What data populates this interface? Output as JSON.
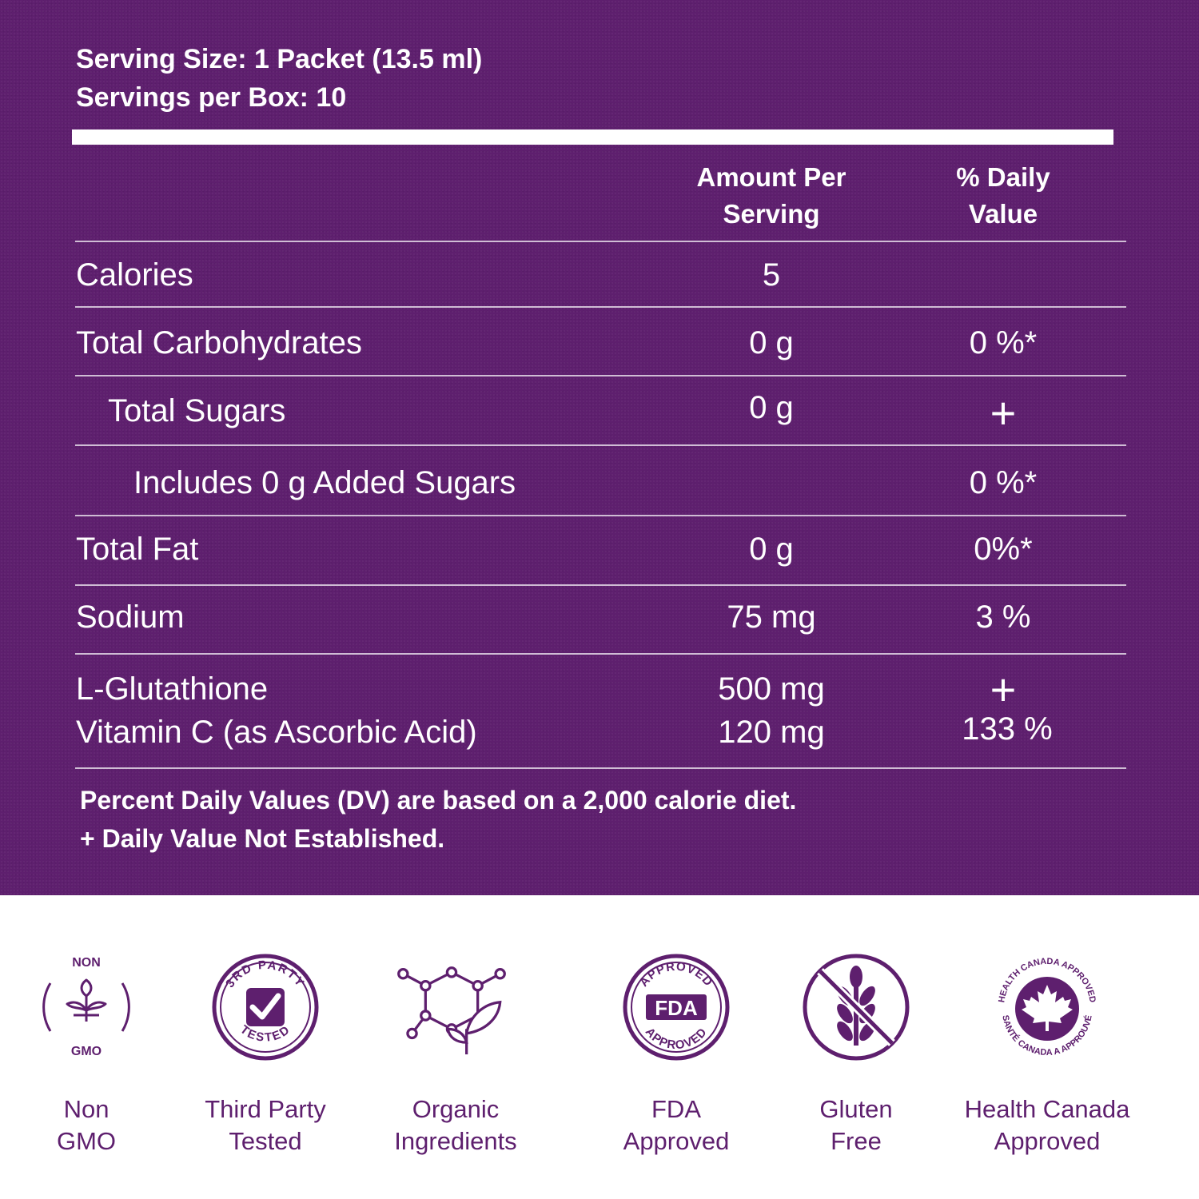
{
  "header": {
    "serving_size": "Serving Size: 1 Packet (13.5 ml)",
    "servings_per_box": "Servings per Box: 10"
  },
  "columns": {
    "amount_line1": "Amount Per",
    "amount_line2": "Serving",
    "dv_line1": "% Daily",
    "dv_line2": "Value"
  },
  "rows": [
    {
      "label": "Calories",
      "amount": "5",
      "dv": ""
    },
    {
      "label": "Total Carbohydrates",
      "amount": "0 g",
      "dv": "0 %*"
    },
    {
      "label": "Total Sugars",
      "amount": "0 g",
      "dv": "+"
    },
    {
      "label": "Includes 0 g Added Sugars",
      "amount": "",
      "dv": "0 %*"
    },
    {
      "label": "Total Fat",
      "amount": "0 g",
      "dv": "0%*"
    },
    {
      "label": "Sodium",
      "amount": "75 mg",
      "dv": "3 %"
    },
    {
      "label": "L-Glutathione",
      "amount": "500 mg",
      "dv": "+"
    },
    {
      "label": "Vitamin C (as Ascorbic Acid)",
      "amount": "120 mg",
      "dv": "133 %"
    }
  ],
  "footnotes": {
    "line1": "Percent Daily Values (DV) are based on a 2,000 calorie diet.",
    "line2": "+ Daily Value Not Established."
  },
  "badges": [
    {
      "icon": "non-gmo-icon",
      "line1": "Non",
      "line2": "GMO",
      "seal_top": "NON",
      "seal_bottom": "GMO"
    },
    {
      "icon": "third-party-tested-icon",
      "line1": "Third Party",
      "line2": "Tested",
      "seal_top": "3RD PARTY",
      "seal_bottom": "TESTED"
    },
    {
      "icon": "organic-molecule-leaf-icon",
      "line1": "Organic",
      "line2": "Ingredients"
    },
    {
      "icon": "fda-approved-icon",
      "line1": "FDA",
      "line2": "Approved",
      "seal_top": "APPROVED",
      "seal_center": "FDA",
      "seal_bottom": "APPROVED"
    },
    {
      "icon": "gluten-free-icon",
      "line1": "Gluten",
      "line2": "Free"
    },
    {
      "icon": "health-canada-icon",
      "line1": "Health Canada",
      "line2": "Approved",
      "seal_top": "HEALTH CANADA APPROVED",
      "seal_bottom": "SANTÉ CANADA A APPROUVÉ"
    }
  ],
  "colors": {
    "panel": "#5e1f6e",
    "text_on_panel": "#ffffff",
    "badge": "#5e1f6e"
  }
}
